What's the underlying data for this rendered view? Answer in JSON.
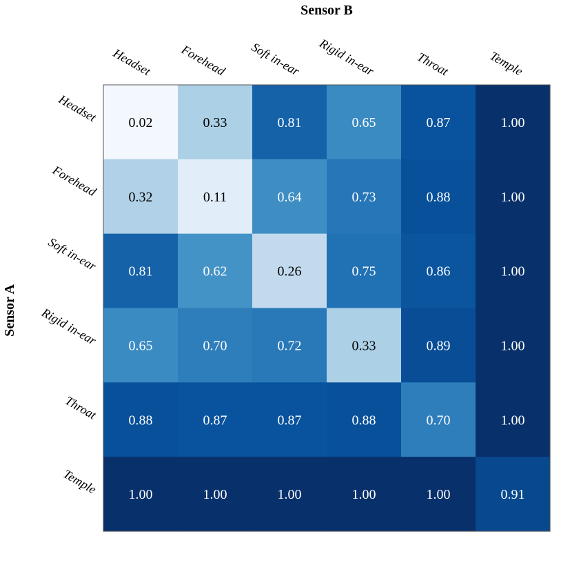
{
  "chart_data": {
    "type": "heatmap",
    "title": "",
    "xlabel": "Sensor B",
    "ylabel": "Sensor A",
    "x_categories": [
      "Headset",
      "Forehead",
      "Soft in-ear",
      "Rigid in-ear",
      "Throat",
      "Temple"
    ],
    "y_categories": [
      "Headset",
      "Forehead",
      "Soft in-ear",
      "Rigid in-ear",
      "Throat",
      "Temple"
    ],
    "values": [
      [
        0.02,
        0.33,
        0.81,
        0.65,
        0.87,
        1.0
      ],
      [
        0.32,
        0.11,
        0.64,
        0.73,
        0.88,
        1.0
      ],
      [
        0.81,
        0.62,
        0.26,
        0.75,
        0.86,
        1.0
      ],
      [
        0.65,
        0.7,
        0.72,
        0.33,
        0.89,
        1.0
      ],
      [
        0.88,
        0.87,
        0.87,
        0.88,
        0.7,
        1.0
      ],
      [
        1.0,
        1.0,
        1.0,
        1.0,
        1.0,
        0.91
      ]
    ],
    "value_format": "0.00",
    "colormap": "Blues",
    "vmin": 0.0,
    "vmax": 1.0,
    "colorbar": false,
    "grid": false
  }
}
